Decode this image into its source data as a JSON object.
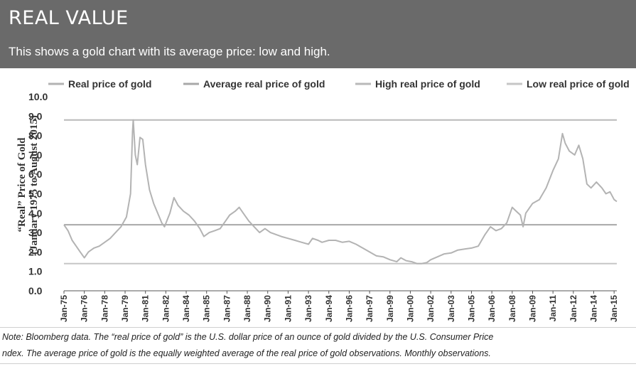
{
  "header": {
    "title": "REAL VALUE",
    "subtitle": "This shows a gold chart with its average price: low and high."
  },
  "note": {
    "line1": "Note:  Bloomberg data. The “real price of gold” is the U.S. dollar price of an ounce of gold divided by the U.S. Consumer Price",
    "line2": "ndex. The average price of gold is the equally weighted average of the real price of gold observations. Monthly observations."
  },
  "colors": {
    "header_bg": "#6a6a6a",
    "real": "#b3b3b3",
    "average": "#a8a8a8",
    "high": "#b9b9b9",
    "low": "#c6c6c6"
  },
  "chart_data": {
    "type": "line",
    "title": "",
    "ylabel_line1": "“Real” Price of Gold",
    "ylabel_line2": "(January 1975 to August 2015)",
    "xlabel": "",
    "ylim": [
      0,
      10
    ],
    "yticks": [
      "0.0",
      "1.0",
      "2.0",
      "3.0",
      "4.0",
      "5.0",
      "6.0",
      "7.0",
      "8.0",
      "9.0",
      "10.0"
    ],
    "xlim": [
      1975.0,
      2015.7
    ],
    "xticks": [
      {
        "label": "Jan-75",
        "x": 1975.0
      },
      {
        "label": "Jan-76",
        "x": 1976.5
      },
      {
        "label": "Jan-78",
        "x": 1978.0
      },
      {
        "label": "Jan-79",
        "x": 1979.5
      },
      {
        "label": "Jan-81",
        "x": 1981.0
      },
      {
        "label": "Jan-82",
        "x": 1982.5
      },
      {
        "label": "Jan-84",
        "x": 1984.0
      },
      {
        "label": "Jan-85",
        "x": 1985.5
      },
      {
        "label": "Jan-87",
        "x": 1987.0
      },
      {
        "label": "Jan-88",
        "x": 1988.5
      },
      {
        "label": "Jan-90",
        "x": 1990.0
      },
      {
        "label": "Jan-91",
        "x": 1991.5
      },
      {
        "label": "Jan-93",
        "x": 1993.0
      },
      {
        "label": "Jan-94",
        "x": 1994.5
      },
      {
        "label": "Jan-96",
        "x": 1996.0
      },
      {
        "label": "Jan-97",
        "x": 1997.5
      },
      {
        "label": "Jan-99",
        "x": 1999.0
      },
      {
        "label": "Jan-00",
        "x": 2000.5
      },
      {
        "label": "Jan-02",
        "x": 2002.0
      },
      {
        "label": "Jan-03",
        "x": 2003.5
      },
      {
        "label": "Jan-05",
        "x": 2005.0
      },
      {
        "label": "Jan-06",
        "x": 2006.5
      },
      {
        "label": "Jan-08",
        "x": 2008.0
      },
      {
        "label": "Jan-09",
        "x": 2009.5
      },
      {
        "label": "Jan-11",
        "x": 2011.0
      },
      {
        "label": "Jan-12",
        "x": 2012.5
      },
      {
        "label": "Jan-14",
        "x": 2014.0
      },
      {
        "label": "Jan-15",
        "x": 2015.5
      }
    ],
    "legend_position": "top",
    "grid": false,
    "series": [
      {
        "name": "Real price of gold",
        "points": [
          [
            1975.0,
            3.4
          ],
          [
            1975.3,
            3.1
          ],
          [
            1975.6,
            2.6
          ],
          [
            1975.9,
            2.3
          ],
          [
            1976.2,
            2.0
          ],
          [
            1976.5,
            1.7
          ],
          [
            1976.8,
            2.0
          ],
          [
            1977.2,
            2.2
          ],
          [
            1977.6,
            2.3
          ],
          [
            1978.0,
            2.5
          ],
          [
            1978.4,
            2.7
          ],
          [
            1978.8,
            3.0
          ],
          [
            1979.2,
            3.3
          ],
          [
            1979.6,
            3.8
          ],
          [
            1979.9,
            5.0
          ],
          [
            1980.05,
            8.2
          ],
          [
            1980.1,
            8.8
          ],
          [
            1980.25,
            7.0
          ],
          [
            1980.4,
            6.5
          ],
          [
            1980.6,
            7.9
          ],
          [
            1980.8,
            7.8
          ],
          [
            1981.0,
            6.5
          ],
          [
            1981.3,
            5.2
          ],
          [
            1981.6,
            4.5
          ],
          [
            1981.9,
            4.0
          ],
          [
            1982.2,
            3.5
          ],
          [
            1982.4,
            3.3
          ],
          [
            1982.8,
            4.0
          ],
          [
            1983.1,
            4.8
          ],
          [
            1983.4,
            4.4
          ],
          [
            1983.8,
            4.1
          ],
          [
            1984.2,
            3.9
          ],
          [
            1984.6,
            3.6
          ],
          [
            1985.0,
            3.2
          ],
          [
            1985.3,
            2.8
          ],
          [
            1985.7,
            3.0
          ],
          [
            1986.1,
            3.1
          ],
          [
            1986.5,
            3.2
          ],
          [
            1986.9,
            3.6
          ],
          [
            1987.2,
            3.9
          ],
          [
            1987.6,
            4.1
          ],
          [
            1987.9,
            4.3
          ],
          [
            1988.2,
            4.0
          ],
          [
            1988.6,
            3.6
          ],
          [
            1989.0,
            3.3
          ],
          [
            1989.4,
            3.0
          ],
          [
            1989.8,
            3.2
          ],
          [
            1990.2,
            3.0
          ],
          [
            1990.6,
            2.9
          ],
          [
            1991.0,
            2.8
          ],
          [
            1991.5,
            2.7
          ],
          [
            1992.0,
            2.6
          ],
          [
            1992.5,
            2.5
          ],
          [
            1993.0,
            2.4
          ],
          [
            1993.3,
            2.7
          ],
          [
            1993.7,
            2.6
          ],
          [
            1994.0,
            2.5
          ],
          [
            1994.5,
            2.6
          ],
          [
            1995.0,
            2.6
          ],
          [
            1995.5,
            2.5
          ],
          [
            1996.0,
            2.55
          ],
          [
            1996.5,
            2.4
          ],
          [
            1997.0,
            2.2
          ],
          [
            1997.5,
            2.0
          ],
          [
            1998.0,
            1.8
          ],
          [
            1998.5,
            1.75
          ],
          [
            1999.0,
            1.6
          ],
          [
            1999.5,
            1.5
          ],
          [
            1999.8,
            1.7
          ],
          [
            2000.2,
            1.55
          ],
          [
            2000.6,
            1.5
          ],
          [
            2001.0,
            1.4
          ],
          [
            2001.3,
            1.4
          ],
          [
            2001.7,
            1.45
          ],
          [
            2002.0,
            1.6
          ],
          [
            2002.5,
            1.75
          ],
          [
            2003.0,
            1.9
          ],
          [
            2003.5,
            1.95
          ],
          [
            2004.0,
            2.1
          ],
          [
            2004.5,
            2.15
          ],
          [
            2005.0,
            2.2
          ],
          [
            2005.5,
            2.3
          ],
          [
            2006.0,
            2.9
          ],
          [
            2006.4,
            3.3
          ],
          [
            2006.8,
            3.1
          ],
          [
            2007.2,
            3.2
          ],
          [
            2007.6,
            3.5
          ],
          [
            2008.0,
            4.3
          ],
          [
            2008.3,
            4.1
          ],
          [
            2008.6,
            3.9
          ],
          [
            2008.8,
            3.3
          ],
          [
            2009.0,
            4.0
          ],
          [
            2009.5,
            4.5
          ],
          [
            2010.0,
            4.7
          ],
          [
            2010.5,
            5.3
          ],
          [
            2011.0,
            6.2
          ],
          [
            2011.4,
            6.8
          ],
          [
            2011.7,
            8.1
          ],
          [
            2011.9,
            7.6
          ],
          [
            2012.2,
            7.2
          ],
          [
            2012.6,
            7.0
          ],
          [
            2012.9,
            7.5
          ],
          [
            2013.2,
            6.8
          ],
          [
            2013.5,
            5.5
          ],
          [
            2013.8,
            5.3
          ],
          [
            2014.2,
            5.6
          ],
          [
            2014.6,
            5.3
          ],
          [
            2014.9,
            5.0
          ],
          [
            2015.2,
            5.1
          ],
          [
            2015.5,
            4.7
          ],
          [
            2015.7,
            4.6
          ]
        ]
      },
      {
        "name": "Average real price of gold",
        "value": 3.4
      },
      {
        "name": "High real price of gold",
        "value": 8.8
      },
      {
        "name": "Low real price of gold",
        "value": 1.4
      }
    ]
  }
}
